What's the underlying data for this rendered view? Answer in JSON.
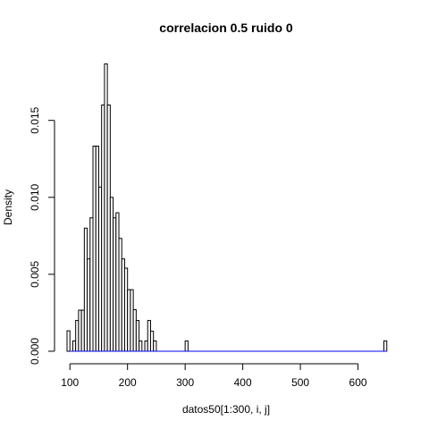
{
  "chart_data": {
    "type": "bar",
    "subtype": "histogram",
    "title": "correlacion 0.5 ruido 0",
    "xlabel": "datos50[1:300, i, j]",
    "ylabel": "Density",
    "xlim": [
      95,
      655
    ],
    "ylim": [
      0,
      0.0187
    ],
    "x_ticks": [
      100,
      200,
      300,
      400,
      500,
      600
    ],
    "x_tick_labels": [
      "100",
      "200",
      "300",
      "400",
      "500",
      "600"
    ],
    "y_ticks": [
      0,
      0.005,
      0.01,
      0.015
    ],
    "y_tick_labels": [
      "0.000",
      "0.005",
      "0.010",
      "0.015"
    ],
    "bin_width": 5,
    "bins": [
      {
        "start": 95,
        "end": 100,
        "density": 0.00133
      },
      {
        "start": 100,
        "end": 105,
        "density": 0.0
      },
      {
        "start": 105,
        "end": 110,
        "density": 0.00067
      },
      {
        "start": 110,
        "end": 115,
        "density": 0.002
      },
      {
        "start": 115,
        "end": 120,
        "density": 0.00267
      },
      {
        "start": 120,
        "end": 125,
        "density": 0.00267
      },
      {
        "start": 125,
        "end": 130,
        "density": 0.008
      },
      {
        "start": 130,
        "end": 135,
        "density": 0.006
      },
      {
        "start": 135,
        "end": 140,
        "density": 0.00867
      },
      {
        "start": 140,
        "end": 145,
        "density": 0.01333
      },
      {
        "start": 145,
        "end": 150,
        "density": 0.01333
      },
      {
        "start": 150,
        "end": 155,
        "density": 0.01067
      },
      {
        "start": 155,
        "end": 160,
        "density": 0.016
      },
      {
        "start": 160,
        "end": 165,
        "density": 0.01867
      },
      {
        "start": 165,
        "end": 170,
        "density": 0.016
      },
      {
        "start": 170,
        "end": 175,
        "density": 0.01
      },
      {
        "start": 175,
        "end": 180,
        "density": 0.00867
      },
      {
        "start": 180,
        "end": 185,
        "density": 0.009
      },
      {
        "start": 185,
        "end": 190,
        "density": 0.00733
      },
      {
        "start": 190,
        "end": 195,
        "density": 0.006
      },
      {
        "start": 195,
        "end": 200,
        "density": 0.0054
      },
      {
        "start": 200,
        "end": 205,
        "density": 0.004
      },
      {
        "start": 205,
        "end": 210,
        "density": 0.004
      },
      {
        "start": 210,
        "end": 215,
        "density": 0.0027
      },
      {
        "start": 215,
        "end": 220,
        "density": 0.002
      },
      {
        "start": 220,
        "end": 225,
        "density": 0.00067
      },
      {
        "start": 225,
        "end": 230,
        "density": 0.0
      },
      {
        "start": 230,
        "end": 235,
        "density": 0.00067
      },
      {
        "start": 235,
        "end": 240,
        "density": 0.002
      },
      {
        "start": 240,
        "end": 245,
        "density": 0.0013
      },
      {
        "start": 245,
        "end": 250,
        "density": 0.00067
      },
      {
        "start": 300,
        "end": 305,
        "density": 0.00067
      },
      {
        "start": 645,
        "end": 650,
        "density": 0.00067
      }
    ],
    "density_curve": {
      "color": "#0000ff",
      "x": [
        100,
        200,
        300,
        400,
        500,
        600,
        650
      ],
      "y": [
        0,
        0,
        0,
        0,
        0,
        0,
        0
      ]
    },
    "grid": false,
    "legend": "none"
  }
}
